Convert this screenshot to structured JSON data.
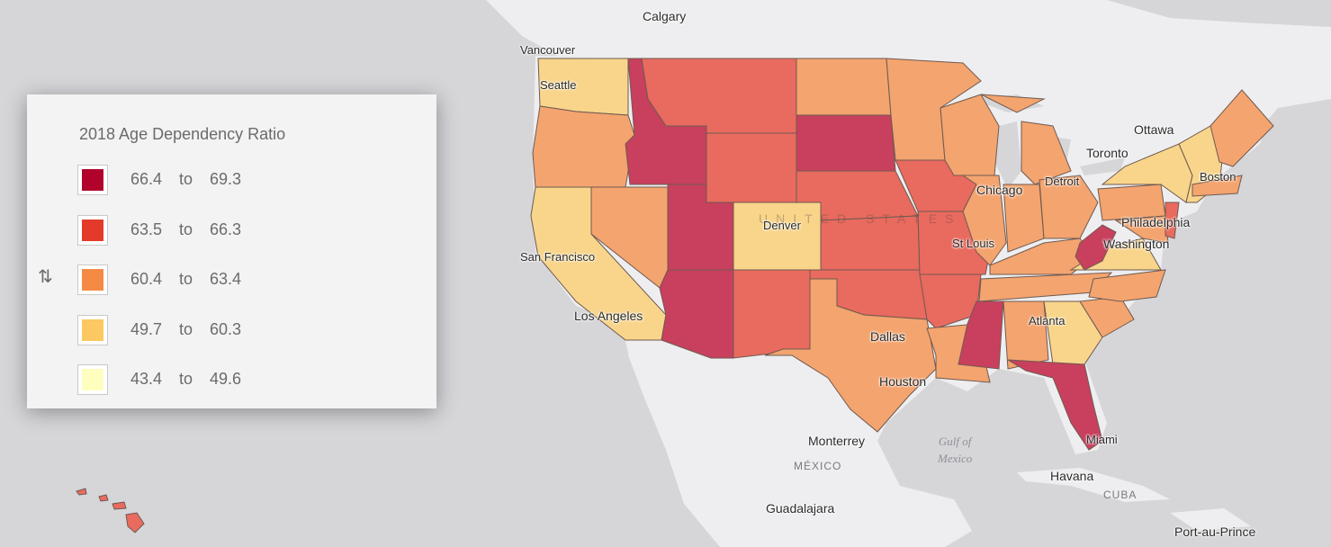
{
  "legend": {
    "title": "2018 Age Dependency Ratio",
    "sort_icon": "sort-arrows-icon",
    "classes": [
      {
        "from": "66.4",
        "word": "to",
        "to": "69.3",
        "color": "#b0022a"
      },
      {
        "from": "63.5",
        "word": "to",
        "to": "66.3",
        "color": "#e33a2a"
      },
      {
        "from": "60.4",
        "word": "to",
        "to": "63.4",
        "color": "#f58a44"
      },
      {
        "from": "49.7",
        "word": "to",
        "to": "60.3",
        "color": "#fbc861"
      },
      {
        "from": "43.4",
        "word": "to",
        "to": "49.6",
        "color": "#fefebe"
      }
    ]
  },
  "map": {
    "colors": {
      "background": "#d6d6d9",
      "land": "#eeeef0",
      "state_border": "#6e5a52",
      "cat1": "#c8405d",
      "cat2": "#e96a5e",
      "cat3": "#f4a46e",
      "cat4": "#f8d58a"
    },
    "cities": {
      "calgary": "Calgary",
      "vancouver": "Vancouver",
      "seattle": "Seattle",
      "ottawa": "Ottawa",
      "toronto": "Toronto",
      "boston": "Boston",
      "chicago": "Chicago",
      "detroit": "Detroit",
      "denver": "Denver",
      "philadelphia": "Philadelphia",
      "washington": "Washington",
      "st_louis": "St Louis",
      "san_francisco": "San Francisco",
      "los_angeles": "Los Angeles",
      "atlanta": "Atlanta",
      "dallas": "Dallas",
      "houston": "Houston",
      "monterrey": "Monterrey",
      "miami": "Miami",
      "havana": "Havana",
      "guadalajara": "Guadalajara",
      "port_au_prince": "Port-au-Prince"
    },
    "countries": {
      "united_states": "UNITED STATES",
      "mexico": "MÉXICO",
      "cuba": "CUBA"
    },
    "water": {
      "gulf_line1": "Gulf of",
      "gulf_line2": "Mexico"
    }
  }
}
